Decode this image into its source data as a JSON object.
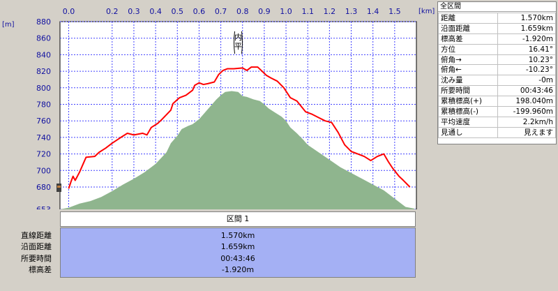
{
  "chart_data": {
    "type": "area",
    "x_unit": "[km]",
    "y_unit": "[m]",
    "xlim": [
      -0.04,
      1.6
    ],
    "ylim": [
      653,
      880
    ],
    "x_ticks": [
      0.0,
      0.2,
      0.3,
      0.4,
      0.5,
      0.6,
      0.7,
      0.8,
      0.9,
      1.0,
      1.1,
      1.2,
      1.3,
      1.4,
      1.5
    ],
    "x_tick_labels": [
      "0.0",
      "0.2",
      "0.3",
      "0.4",
      "0.5",
      "0.6",
      "0.7",
      "0.8",
      "0.9",
      "1.0",
      "1.1",
      "1.2",
      "1.3",
      "1.4",
      "1.5"
    ],
    "y_ticks": [
      653,
      680,
      700,
      720,
      740,
      760,
      780,
      800,
      820,
      840,
      860,
      880
    ],
    "y_tick_labels": [
      "653",
      "680",
      "700",
      "720",
      "740",
      "760",
      "780",
      "800",
      "820",
      "840",
      "860",
      "880"
    ],
    "grid": true,
    "series": [
      {
        "kind": "line",
        "color": "#ff0000",
        "x": [
          0.0,
          0.01,
          0.02,
          0.03,
          0.05,
          0.07,
          0.08,
          0.12,
          0.14,
          0.17,
          0.2,
          0.24,
          0.27,
          0.3,
          0.34,
          0.36,
          0.38,
          0.41,
          0.43,
          0.47,
          0.48,
          0.51,
          0.54,
          0.57,
          0.58,
          0.6,
          0.62,
          0.64,
          0.67,
          0.69,
          0.71,
          0.73,
          0.76,
          0.8,
          0.82,
          0.84,
          0.87,
          0.91,
          0.93,
          0.96,
          0.99,
          1.02,
          1.05,
          1.09,
          1.12,
          1.15,
          1.18,
          1.21,
          1.24,
          1.27,
          1.3,
          1.33,
          1.36,
          1.39,
          1.42,
          1.45,
          1.47,
          1.49,
          1.52,
          1.54,
          1.57
        ],
        "y": [
          678,
          686,
          693,
          688,
          698,
          710,
          716,
          717,
          722,
          727,
          733,
          740,
          745,
          743,
          745,
          743,
          752,
          757,
          762,
          773,
          781,
          788,
          791,
          797,
          803,
          806,
          804,
          805,
          807,
          816,
          821,
          823,
          823,
          824,
          821,
          825,
          825,
          815,
          812,
          808,
          800,
          788,
          784,
          771,
          768,
          764,
          760,
          758,
          746,
          731,
          723,
          720,
          717,
          712,
          717,
          720,
          711,
          703,
          693,
          688,
          680
        ]
      },
      {
        "kind": "area",
        "color": "#8fb58e",
        "x": [
          -0.04,
          0.0,
          0.05,
          0.1,
          0.15,
          0.2,
          0.25,
          0.3,
          0.35,
          0.4,
          0.45,
          0.47,
          0.5,
          0.52,
          0.55,
          0.57,
          0.6,
          0.62,
          0.65,
          0.68,
          0.7,
          0.72,
          0.75,
          0.78,
          0.8,
          0.82,
          0.85,
          0.88,
          0.9,
          0.92,
          0.95,
          0.98,
          1.0,
          1.02,
          1.05,
          1.08,
          1.1,
          1.15,
          1.2,
          1.25,
          1.3,
          1.35,
          1.4,
          1.45,
          1.5,
          1.55,
          1.59
        ],
        "y": [
          653,
          655,
          660,
          663,
          668,
          675,
          683,
          690,
          698,
          708,
          722,
          733,
          742,
          750,
          754,
          756,
          762,
          768,
          777,
          786,
          791,
          795,
          796,
          795,
          790,
          789,
          786,
          784,
          780,
          775,
          770,
          765,
          760,
          752,
          745,
          737,
          731,
          722,
          713,
          704,
          697,
          690,
          683,
          676,
          666,
          656,
          654
        ]
      }
    ],
    "annotations": [
      {
        "text": "内平",
        "x": 0.78,
        "y": 853
      }
    ]
  },
  "summary": {
    "title": "全区間",
    "rows": [
      {
        "label": "距離",
        "value": "1.570km"
      },
      {
        "label": "沿面距離",
        "value": "1.659km"
      },
      {
        "label": "標高差",
        "value": "-1.920m"
      },
      {
        "label": "方位",
        "value": "16.41°"
      },
      {
        "label": "俯角→",
        "value": "10.23°"
      },
      {
        "label": "俯角←",
        "value": "-10.23°"
      },
      {
        "label": "沈み量",
        "value": "-0m"
      },
      {
        "label": "所要時間",
        "value": "00:43:46"
      },
      {
        "label": "累積標高(+)",
        "value": "198.040m"
      },
      {
        "label": "累積標高(-)",
        "value": "-199.960m"
      },
      {
        "label": "平均速度",
        "value": "2.2km/h"
      },
      {
        "label": "見通し",
        "value": "見えます"
      }
    ]
  },
  "section": {
    "header": "区間 1",
    "rows": [
      {
        "label": "直線距離",
        "value": "1.570km"
      },
      {
        "label": "沿面距離",
        "value": "1.659km"
      },
      {
        "label": "所要時間",
        "value": "00:43:46"
      },
      {
        "label": "標高差",
        "value": "-1.920m"
      }
    ]
  }
}
